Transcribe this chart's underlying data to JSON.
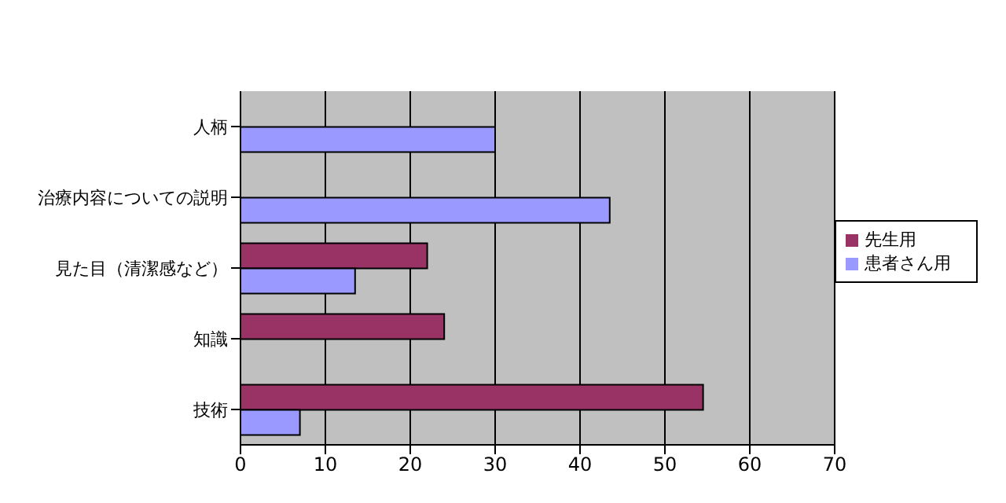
{
  "chart_data": {
    "type": "bar",
    "orientation": "horizontal",
    "categories": [
      "人柄",
      "治療内容についての説明",
      "見た目（清潔感など）",
      "知識",
      "技術"
    ],
    "series": [
      {
        "name": "先生用",
        "color": "#993366",
        "values": [
          0,
          0,
          22,
          24,
          54.5
        ]
      },
      {
        "name": "患者さん用",
        "color": "#9999ff",
        "values": [
          30,
          43.5,
          13.5,
          0,
          7
        ]
      }
    ],
    "xlim": [
      0,
      70
    ],
    "xticks": [
      0,
      10,
      20,
      30,
      40,
      50,
      60,
      70
    ],
    "grid": "x",
    "legend": "right"
  }
}
